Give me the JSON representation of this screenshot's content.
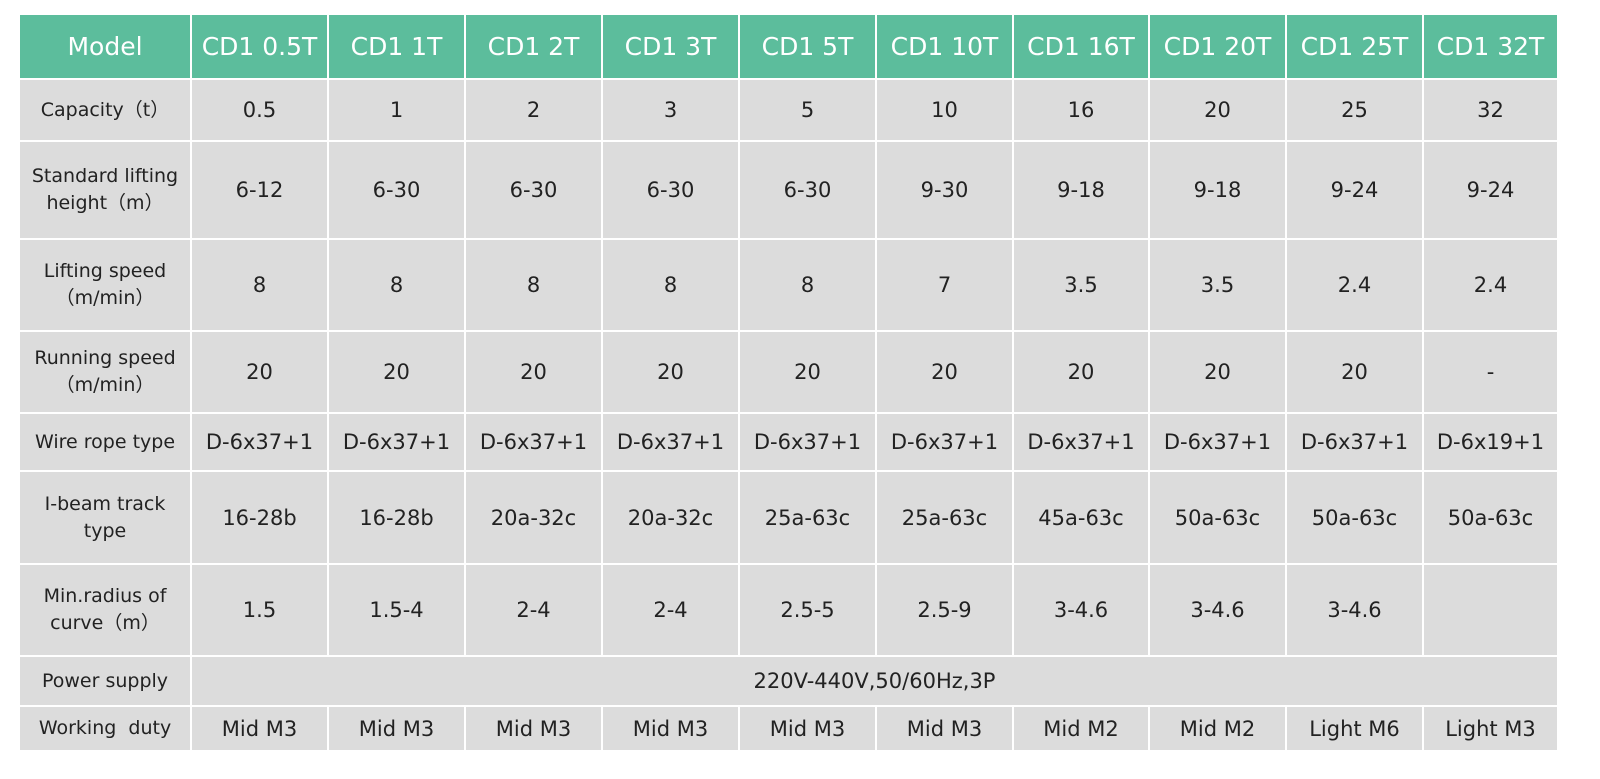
{
  "table": {
    "header": [
      "Model",
      "CD1 0.5T",
      "CD1 1T",
      "CD1 2T",
      "CD1 3T",
      "CD1 5T",
      "CD1 10T",
      "CD1 16T",
      "CD1 20T",
      "CD1 25T",
      "CD1 32T"
    ],
    "rows": [
      [
        "Capacity（t）",
        "0.5",
        "1",
        "2",
        "3",
        "5",
        "10",
        "16",
        "20",
        "25",
        "32"
      ],
      [
        "Standard lifting height（m）",
        "6-12",
        "6-30",
        "6-30",
        "6-30",
        "6-30",
        "9-30",
        "9-18",
        "9-18",
        "9-24",
        "9-24"
      ],
      [
        "Lifting speed（m/min）",
        "8",
        "8",
        "8",
        "8",
        "8",
        "7",
        "3.5",
        "3.5",
        "2.4",
        "2.4"
      ],
      [
        "Running speed（m/min）",
        "20",
        "20",
        "20",
        "20",
        "20",
        "20",
        "20",
        "20",
        "20",
        "-"
      ],
      [
        "Wire rope type",
        "D-6x37+1",
        "D-6x37+1",
        "D-6x37+1",
        "D-6x37+1",
        "D-6x37+1",
        "D-6x37+1",
        "D-6x37+1",
        "D-6x37+1",
        "D-6x37+1",
        "D-6x19+1"
      ],
      [
        "I-beam track type",
        "16-28b",
        "16-28b",
        "20a-32c",
        "20a-32c",
        "25a-63c",
        "25a-63c",
        "45a-63c",
        "50a-63c",
        "50a-63c",
        "50a-63c"
      ],
      [
        "Min.radius of curve（m）",
        "1.5",
        "1.5-4",
        "2-4",
        "2-4",
        "2.5-5",
        "2.5-9",
        "3-4.6",
        "3-4.6",
        "3-4.6"
      ],
      [
        "Power supply",
        "220V-440V,50/60Hz,3P"
      ],
      [
        "Working  duty",
        "Mid M3",
        "Mid M3",
        "Mid M3",
        "Mid M3",
        "Mid M3",
        "Mid M3",
        "Mid M2",
        "Mid M2",
        "Light M6",
        "Light M3"
      ]
    ]
  }
}
